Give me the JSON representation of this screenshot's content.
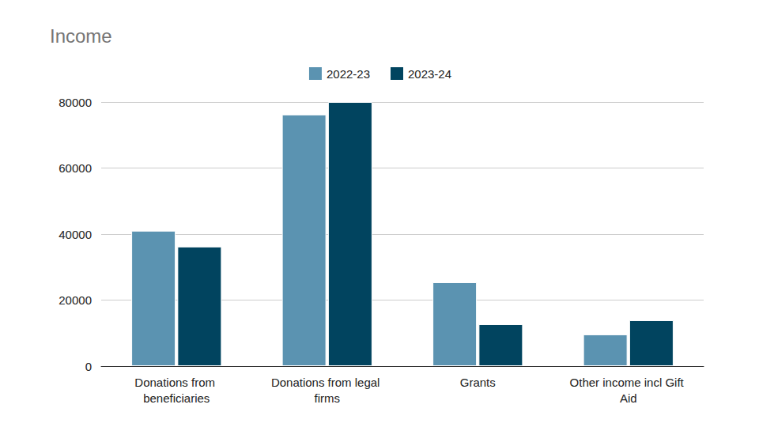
{
  "chart_data": {
    "type": "bar",
    "title": "Income",
    "categories": [
      "Donations from beneficiaries",
      "Donations from legal firms",
      "Grants",
      "Other income incl Gift Aid"
    ],
    "series": [
      {
        "name": "2022-23",
        "color": "#5b93b1",
        "values": [
          41000,
          76200,
          25400,
          9600
        ]
      },
      {
        "name": "2023-24",
        "color": "#01445f",
        "values": [
          36200,
          80000,
          12700,
          13900
        ]
      }
    ],
    "ylim": [
      0,
      80000
    ],
    "yticks": [
      0,
      20000,
      40000,
      60000,
      80000
    ],
    "grid": true,
    "legend": "top"
  }
}
